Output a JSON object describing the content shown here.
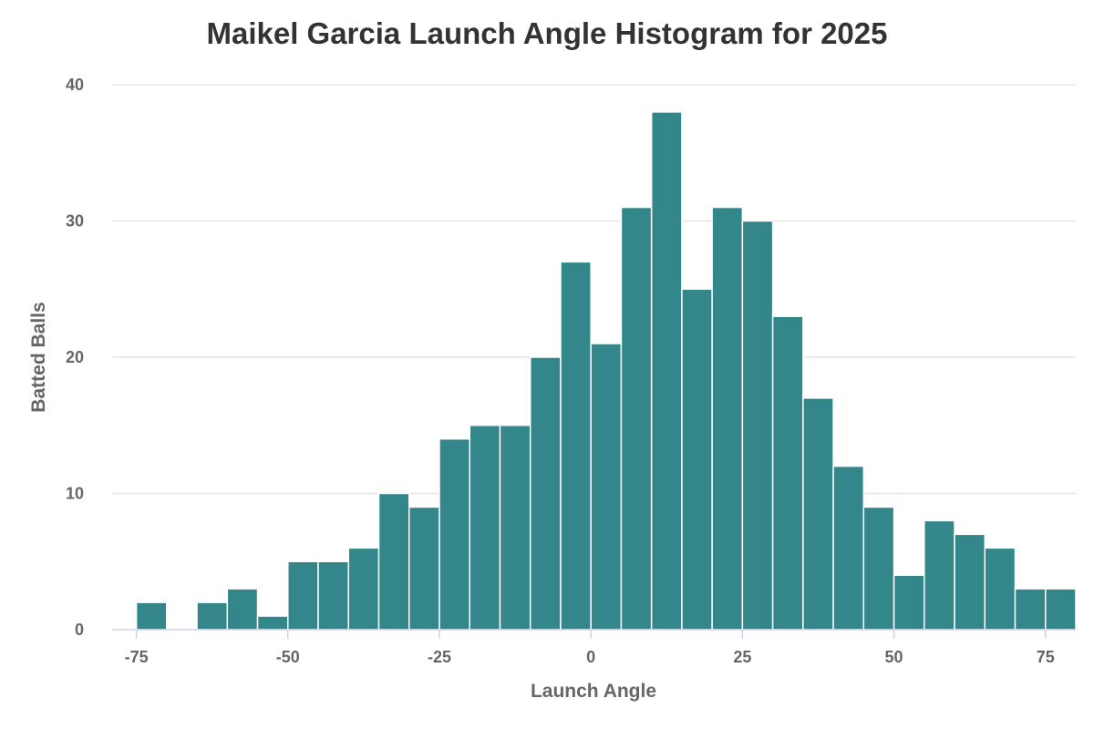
{
  "chart_data": {
    "type": "bar",
    "subtype": "histogram",
    "title": "Maikel Garcia Launch Angle Histogram for 2025",
    "xlabel": "Launch Angle",
    "ylabel": "Batted Balls",
    "xlim": [
      -79,
      80
    ],
    "ylim": [
      0,
      40
    ],
    "xticks": [
      -75,
      -50,
      -25,
      0,
      25,
      50,
      75
    ],
    "yticks": [
      0,
      10,
      20,
      30,
      40
    ],
    "bin_width": 5,
    "bins": [
      {
        "start": -75,
        "end": -70,
        "count": 2
      },
      {
        "start": -70,
        "end": -65,
        "count": 0
      },
      {
        "start": -65,
        "end": -60,
        "count": 2
      },
      {
        "start": -60,
        "end": -55,
        "count": 3
      },
      {
        "start": -55,
        "end": -50,
        "count": 1
      },
      {
        "start": -50,
        "end": -45,
        "count": 5
      },
      {
        "start": -45,
        "end": -40,
        "count": 5
      },
      {
        "start": -40,
        "end": -35,
        "count": 6
      },
      {
        "start": -35,
        "end": -30,
        "count": 10
      },
      {
        "start": -30,
        "end": -25,
        "count": 9
      },
      {
        "start": -25,
        "end": -20,
        "count": 14
      },
      {
        "start": -20,
        "end": -15,
        "count": 15
      },
      {
        "start": -15,
        "end": -10,
        "count": 15
      },
      {
        "start": -10,
        "end": -5,
        "count": 20
      },
      {
        "start": -5,
        "end": 0,
        "count": 27
      },
      {
        "start": 0,
        "end": 5,
        "count": 21
      },
      {
        "start": 5,
        "end": 10,
        "count": 31
      },
      {
        "start": 10,
        "end": 15,
        "count": 38
      },
      {
        "start": 15,
        "end": 20,
        "count": 25
      },
      {
        "start": 20,
        "end": 25,
        "count": 31
      },
      {
        "start": 25,
        "end": 30,
        "count": 30
      },
      {
        "start": 30,
        "end": 35,
        "count": 23
      },
      {
        "start": 35,
        "end": 40,
        "count": 17
      },
      {
        "start": 40,
        "end": 45,
        "count": 12
      },
      {
        "start": 45,
        "end": 50,
        "count": 9
      },
      {
        "start": 50,
        "end": 55,
        "count": 4
      },
      {
        "start": 55,
        "end": 60,
        "count": 8
      },
      {
        "start": 60,
        "end": 65,
        "count": 7
      },
      {
        "start": 65,
        "end": 70,
        "count": 6
      },
      {
        "start": 70,
        "end": 75,
        "count": 3
      },
      {
        "start": 75,
        "end": 80,
        "count": 3
      }
    ],
    "colors": {
      "bar": "#33868a",
      "grid": "#e6e6e6",
      "axis": "#ccd6eb",
      "text": "#666666",
      "title": "#333333"
    },
    "grid": true,
    "legend": "none"
  }
}
